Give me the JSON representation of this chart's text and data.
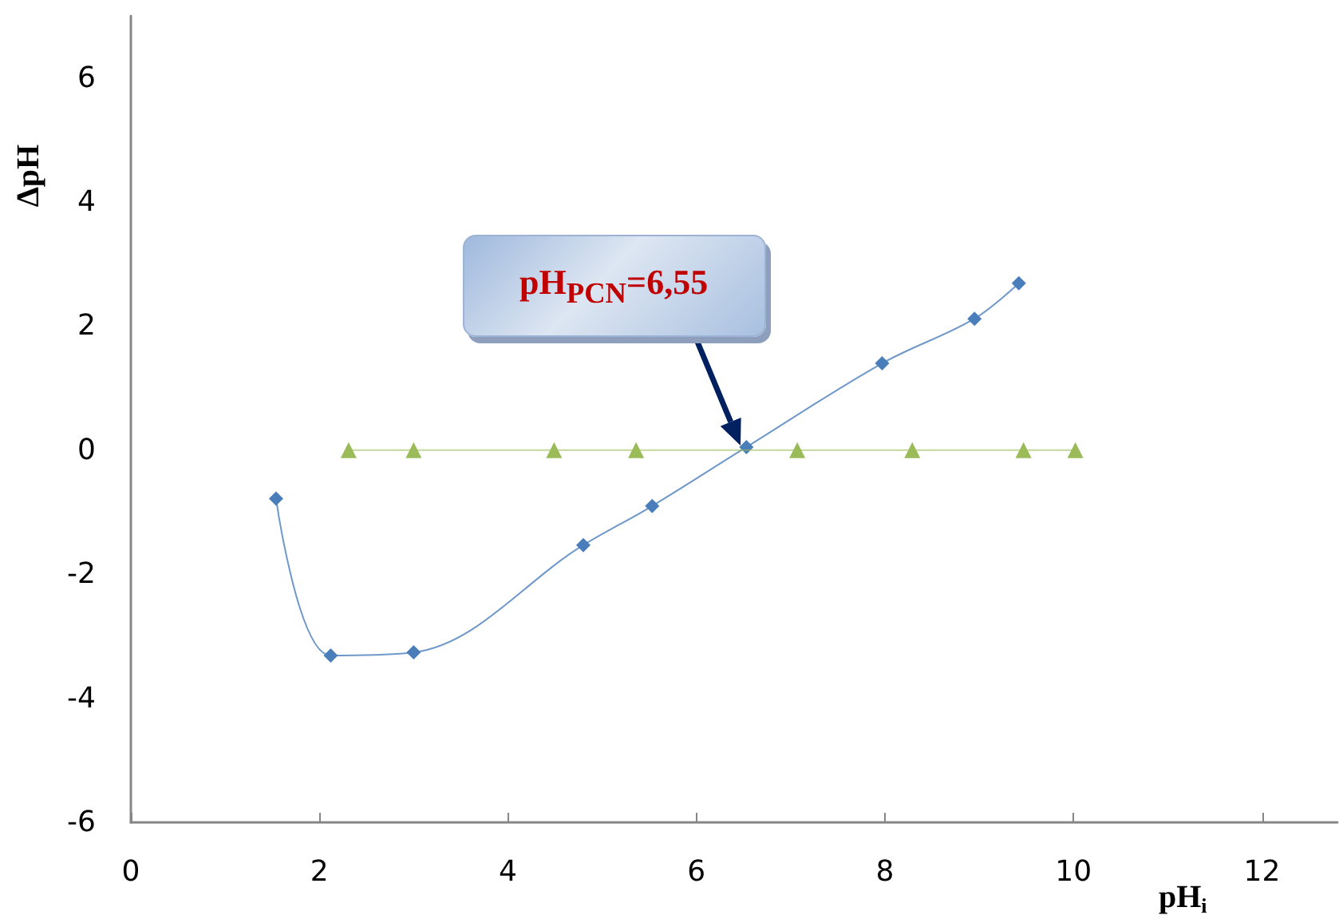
{
  "chart_data": {
    "type": "line",
    "xlabel": "pH$_{i}$",
    "ylabel": "ΔpH",
    "xlim": [
      0,
      12.8
    ],
    "ylim": [
      -6,
      7
    ],
    "xticks": [
      0,
      2,
      4,
      6,
      8,
      10,
      12
    ],
    "yticks": [
      -6,
      -4,
      -2,
      0,
      2,
      4,
      6
    ],
    "grid": false,
    "series": [
      {
        "type": "line",
        "color": "#4a7ebb",
        "marker": "diamond",
        "x": [
          1.54,
          2.12,
          3.0,
          4.8,
          5.53,
          6.53,
          7.97,
          8.95,
          9.42
        ],
        "values": [
          -0.78,
          -3.31,
          -3.26,
          -1.53,
          -0.9,
          0.05,
          1.4,
          2.12,
          2.69
        ]
      },
      {
        "type": "line",
        "color": "#9bbb59",
        "marker": "triangle",
        "x": [
          2.31,
          3.0,
          4.49,
          5.36,
          7.07,
          8.29,
          9.47,
          10.02
        ],
        "values": [
          0,
          0,
          0,
          0,
          0,
          0,
          0,
          0
        ]
      }
    ],
    "annotations": [
      "pH$_{PCN}$=6,55"
    ]
  }
}
